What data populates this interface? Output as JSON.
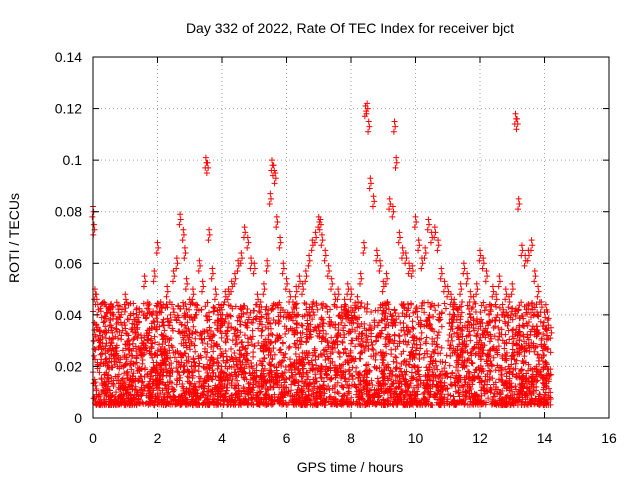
{
  "chart_data": {
    "type": "scatter",
    "title": "Day 332 of 2022, Rate Of TEC Index for receiver bjct",
    "xlabel": "GPS time / hours",
    "ylabel": "ROTI / TECUs",
    "xlim": [
      0,
      16
    ],
    "ylim": [
      0,
      0.14
    ],
    "xticks": [
      0,
      2,
      4,
      6,
      8,
      10,
      12,
      14,
      16
    ],
    "yticks": [
      0,
      0.02,
      0.04,
      0.06,
      0.08,
      0.1,
      0.12,
      0.14
    ],
    "xtick_labels": [
      "0",
      "2",
      "4",
      "6",
      "8",
      "10",
      "12",
      "14",
      "16"
    ],
    "ytick_labels": [
      "0",
      "0.02",
      "0.04",
      "0.06",
      "0.08",
      "0.1",
      "0.12",
      "0.14"
    ],
    "grid": true,
    "marker": "+",
    "color": "#ff0000",
    "series": [
      {
        "name": "ROTI",
        "x": [
          0.0,
          0.03,
          0.06,
          0.1,
          0.15,
          0.2,
          0.3,
          0.4,
          0.5,
          0.6,
          0.7,
          0.8,
          0.9,
          1.0,
          1.1,
          1.2,
          1.3,
          1.4,
          1.5,
          1.6,
          1.7,
          1.8,
          1.9,
          2.0,
          2.1,
          2.2,
          2.3,
          2.4,
          2.5,
          2.6,
          2.7,
          2.8,
          2.85,
          2.9,
          3.0,
          3.1,
          3.2,
          3.3,
          3.4,
          3.5,
          3.55,
          3.6,
          3.7,
          3.8,
          3.9,
          4.0,
          4.1,
          4.2,
          4.3,
          4.4,
          4.5,
          4.6,
          4.7,
          4.8,
          4.9,
          5.0,
          5.1,
          5.2,
          5.3,
          5.4,
          5.5,
          5.55,
          5.6,
          5.65,
          5.7,
          5.8,
          5.9,
          6.0,
          6.1,
          6.2,
          6.3,
          6.4,
          6.5,
          6.6,
          6.7,
          6.8,
          6.9,
          7.0,
          7.05,
          7.1,
          7.2,
          7.3,
          7.4,
          7.5,
          7.6,
          7.7,
          7.8,
          7.9,
          8.0,
          8.1,
          8.2,
          8.3,
          8.4,
          8.45,
          8.5,
          8.55,
          8.6,
          8.7,
          8.8,
          8.9,
          9.0,
          9.1,
          9.2,
          9.3,
          9.35,
          9.4,
          9.5,
          9.6,
          9.7,
          9.8,
          9.9,
          10.0,
          10.1,
          10.2,
          10.3,
          10.4,
          10.5,
          10.6,
          10.7,
          10.8,
          10.9,
          11.0,
          11.1,
          11.2,
          11.3,
          11.4,
          11.5,
          11.6,
          11.7,
          11.8,
          11.9,
          12.0,
          12.1,
          12.2,
          12.3,
          12.4,
          12.5,
          12.6,
          12.7,
          12.8,
          12.9,
          13.0,
          13.1,
          13.15,
          13.2,
          13.3,
          13.4,
          13.5,
          13.6,
          13.7,
          13.8,
          13.9,
          14.0,
          14.1,
          14.2
        ],
        "y": [
          0.082,
          0.075,
          0.05,
          0.048,
          0.044,
          0.034,
          0.029,
          0.031,
          0.038,
          0.033,
          0.027,
          0.041,
          0.036,
          0.048,
          0.032,
          0.026,
          0.035,
          0.039,
          0.031,
          0.055,
          0.034,
          0.029,
          0.057,
          0.068,
          0.045,
          0.036,
          0.051,
          0.04,
          0.057,
          0.062,
          0.079,
          0.073,
          0.066,
          0.054,
          0.046,
          0.05,
          0.044,
          0.061,
          0.053,
          0.101,
          0.099,
          0.073,
          0.058,
          0.05,
          0.044,
          0.042,
          0.049,
          0.05,
          0.053,
          0.056,
          0.061,
          0.064,
          0.074,
          0.07,
          0.062,
          0.06,
          0.048,
          0.045,
          0.052,
          0.061,
          0.087,
          0.1,
          0.098,
          0.095,
          0.078,
          0.07,
          0.06,
          0.054,
          0.049,
          0.045,
          0.051,
          0.055,
          0.052,
          0.057,
          0.063,
          0.069,
          0.072,
          0.078,
          0.077,
          0.071,
          0.065,
          0.059,
          0.054,
          0.048,
          0.05,
          0.043,
          0.046,
          0.052,
          0.05,
          0.041,
          0.047,
          0.056,
          0.068,
          0.121,
          0.122,
          0.115,
          0.093,
          0.086,
          0.065,
          0.061,
          0.053,
          0.056,
          0.085,
          0.082,
          0.115,
          0.101,
          0.072,
          0.066,
          0.064,
          0.06,
          0.059,
          0.078,
          0.069,
          0.062,
          0.066,
          0.077,
          0.072,
          0.074,
          0.069,
          0.058,
          0.053,
          0.051,
          0.048,
          0.046,
          0.042,
          0.052,
          0.06,
          0.056,
          0.049,
          0.047,
          0.052,
          0.065,
          0.062,
          0.057,
          0.044,
          0.051,
          0.048,
          0.055,
          0.044,
          0.05,
          0.047,
          0.052,
          0.118,
          0.116,
          0.085,
          0.067,
          0.063,
          0.065,
          0.069,
          0.057,
          0.051,
          0.045,
          0.041,
          0.038,
          0.035
        ]
      }
    ],
    "baseline_band": {
      "description_values_note": "dense scatter of ROTI values between 0.005 and 0.045 over 0 to 14.2 hours",
      "x_range": [
        0,
        14.2
      ],
      "y_min": 0.005,
      "y_max": 0.045
    }
  }
}
